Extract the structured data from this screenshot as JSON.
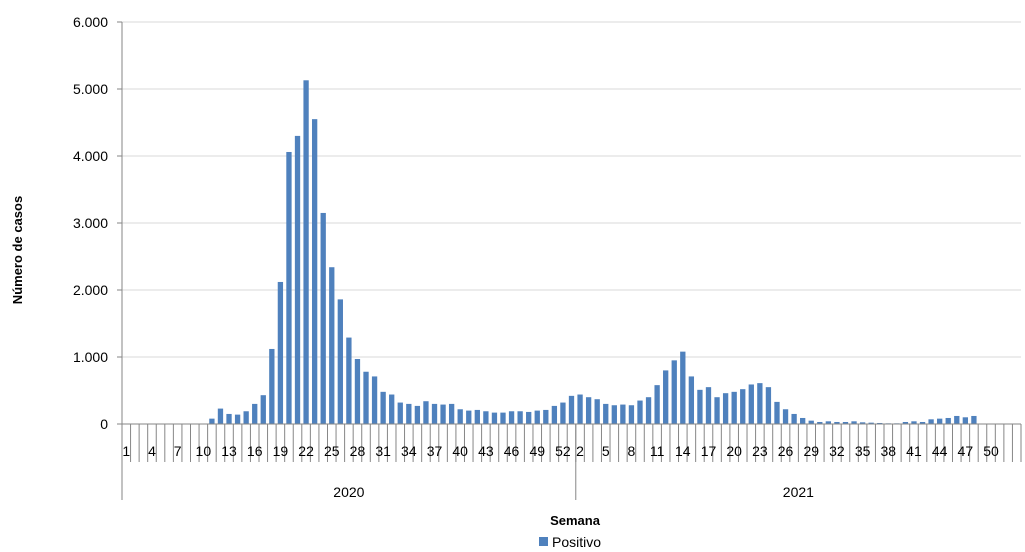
{
  "chart_data": {
    "type": "bar",
    "ylabel": "Número de casos",
    "xlabel": "Semana",
    "ylim": [
      0,
      6000
    ],
    "yticks": [
      0,
      1000,
      2000,
      3000,
      4000,
      5000,
      6000
    ],
    "ytick_labels": [
      "0",
      "1.000",
      "2.000",
      "3.000",
      "4.000",
      "5.000",
      "6.000"
    ],
    "grid": "horizontal",
    "legend_position": "bottom",
    "years": [
      {
        "label": "2020",
        "weeks": 53
      },
      {
        "label": "2021",
        "weeks": 52
      }
    ],
    "week_labels": [
      "1",
      "4",
      "7",
      "10",
      "13",
      "16",
      "19",
      "22",
      "25",
      "28",
      "31",
      "34",
      "37",
      "40",
      "43",
      "46",
      "49",
      "52",
      "2",
      "5",
      "8",
      "11",
      "14",
      "17",
      "20",
      "23",
      "26",
      "29",
      "32",
      "35",
      "38",
      "41",
      "44",
      "47",
      "50"
    ],
    "series": [
      {
        "name": "Positivo",
        "color": "#4f81bd",
        "values": [
          0,
          0,
          0,
          0,
          0,
          0,
          0,
          0,
          0,
          0,
          80,
          230,
          150,
          140,
          190,
          300,
          430,
          1120,
          2120,
          4060,
          4300,
          5130,
          4550,
          3150,
          2340,
          1860,
          1290,
          970,
          780,
          710,
          480,
          440,
          320,
          300,
          270,
          340,
          300,
          290,
          300,
          220,
          200,
          210,
          190,
          170,
          170,
          190,
          190,
          180,
          200,
          210,
          270,
          320,
          420,
          440,
          400,
          370,
          300,
          280,
          290,
          280,
          350,
          400,
          580,
          800,
          950,
          1080,
          710,
          510,
          550,
          400,
          460,
          480,
          520,
          590,
          610,
          550,
          330,
          220,
          150,
          90,
          50,
          30,
          40,
          30,
          30,
          40,
          25,
          20,
          15,
          10,
          10,
          30,
          40,
          30,
          70,
          80,
          90,
          120,
          100,
          120,
          0,
          0,
          0,
          0,
          0
        ]
      }
    ]
  }
}
